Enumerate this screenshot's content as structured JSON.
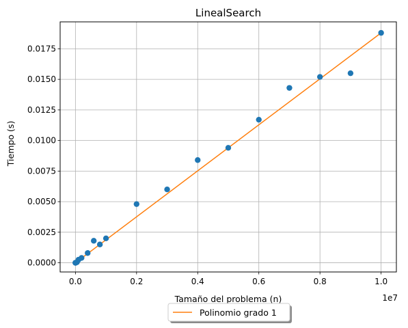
{
  "chart_data": {
    "type": "scatter",
    "title": "LinealSearch",
    "xlabel": "Tamaño del problema (n)",
    "ylabel": "Tiempo (s)",
    "x_offset_text": "1e7",
    "xlim": [
      -500000,
      10500000
    ],
    "ylim": [
      -0.00075,
      0.0197
    ],
    "x_ticks": [
      0,
      2000000,
      4000000,
      6000000,
      8000000,
      10000000
    ],
    "x_tick_labels": [
      "0.0",
      "0.2",
      "0.4",
      "0.6",
      "0.8",
      "1.0"
    ],
    "y_ticks": [
      0,
      0.0025,
      0.005,
      0.0075,
      0.01,
      0.0125,
      0.015,
      0.0175
    ],
    "y_tick_labels": [
      "0.0000",
      "0.0025",
      "0.0050",
      "0.0075",
      "0.0100",
      "0.0125",
      "0.0150",
      "0.0175"
    ],
    "grid": true,
    "legend_placement": "below center",
    "series": [
      {
        "kind": "scatter",
        "color": "#1f77b4",
        "x": [
          10,
          100,
          1000,
          10000,
          50000,
          100000,
          200000,
          400000,
          600000,
          800000,
          1000000,
          2000000,
          3000000,
          4000000,
          5000000,
          6000000,
          7000000,
          8000000,
          9000000,
          10000000
        ],
        "y": [
          0.0,
          0.0,
          0.0,
          0.0,
          5e-05,
          0.00025,
          0.0004,
          0.0008,
          0.0018,
          0.0015,
          0.002,
          0.0048,
          0.006,
          0.0084,
          0.0094,
          0.0117,
          0.0143,
          0.0152,
          0.0155,
          0.0188
        ]
      },
      {
        "kind": "line",
        "name": "Polinomio grado 1",
        "color": "#ff7f0e",
        "x": [
          0,
          10000000
        ],
        "y": [
          0.0,
          0.0188
        ]
      }
    ]
  }
}
